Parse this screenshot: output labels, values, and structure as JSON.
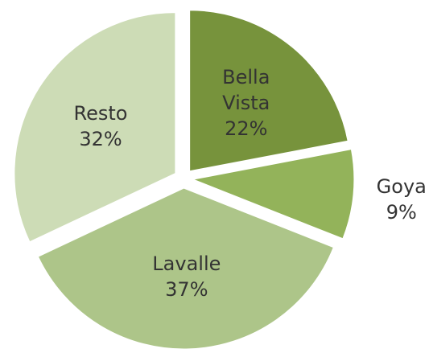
{
  "chart_data": {
    "type": "pie",
    "categories": [
      "Bella Vista",
      "Goya",
      "Lavalle",
      "Resto"
    ],
    "values": [
      22,
      9,
      37,
      32
    ],
    "value_labels": [
      "22%",
      "9%",
      "37%",
      "32%"
    ],
    "colors": [
      "#77933c",
      "#93b35a",
      "#adc589",
      "#cddcb6"
    ]
  }
}
